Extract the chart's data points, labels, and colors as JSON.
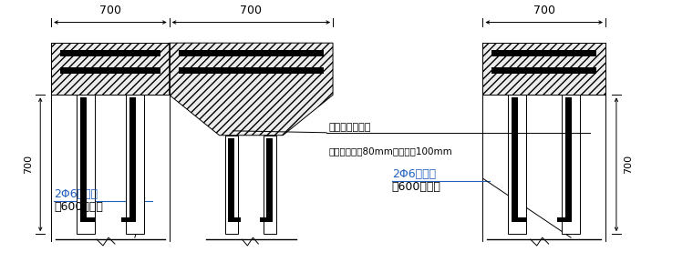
{
  "bg_color": "#ffffff",
  "line_color": "#000000",
  "hatch_bg": "#f0f0f0",
  "bar_color": "#111111",
  "text_black": "#000000",
  "text_blue": "#2060c0",
  "text_gray": "#444444",
  "annot1": "采用结构胶植筋",
  "annot2": "拉结筋植入深80mm，配筋带100mm",
  "label_line1": "2Φ6氿墙高",
  "label_line2": "每600设一道",
  "dim700": "700",
  "dim700v": "700",
  "lw_thin": 0.7,
  "lw_med": 1.0,
  "lw_thick": 1.8
}
